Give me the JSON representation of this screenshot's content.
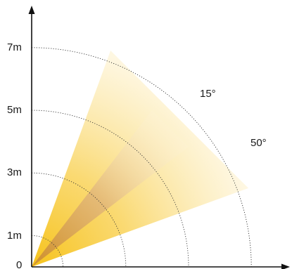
{
  "distance_labels": {
    "origin": "0",
    "d1": "1m",
    "d3": "3m",
    "d5": "5m",
    "d7": "7m"
  },
  "angle_labels": {
    "narrow": "15°",
    "wide": "50°"
  },
  "beams": {
    "narrow_angle_deg": 15,
    "wide_angle_deg": 50,
    "range_m": 7,
    "narrow_color": "#d9a66a",
    "wide_color": "#f8cd2e"
  },
  "distance_rings_m": [
    1,
    3,
    5,
    7
  ]
}
